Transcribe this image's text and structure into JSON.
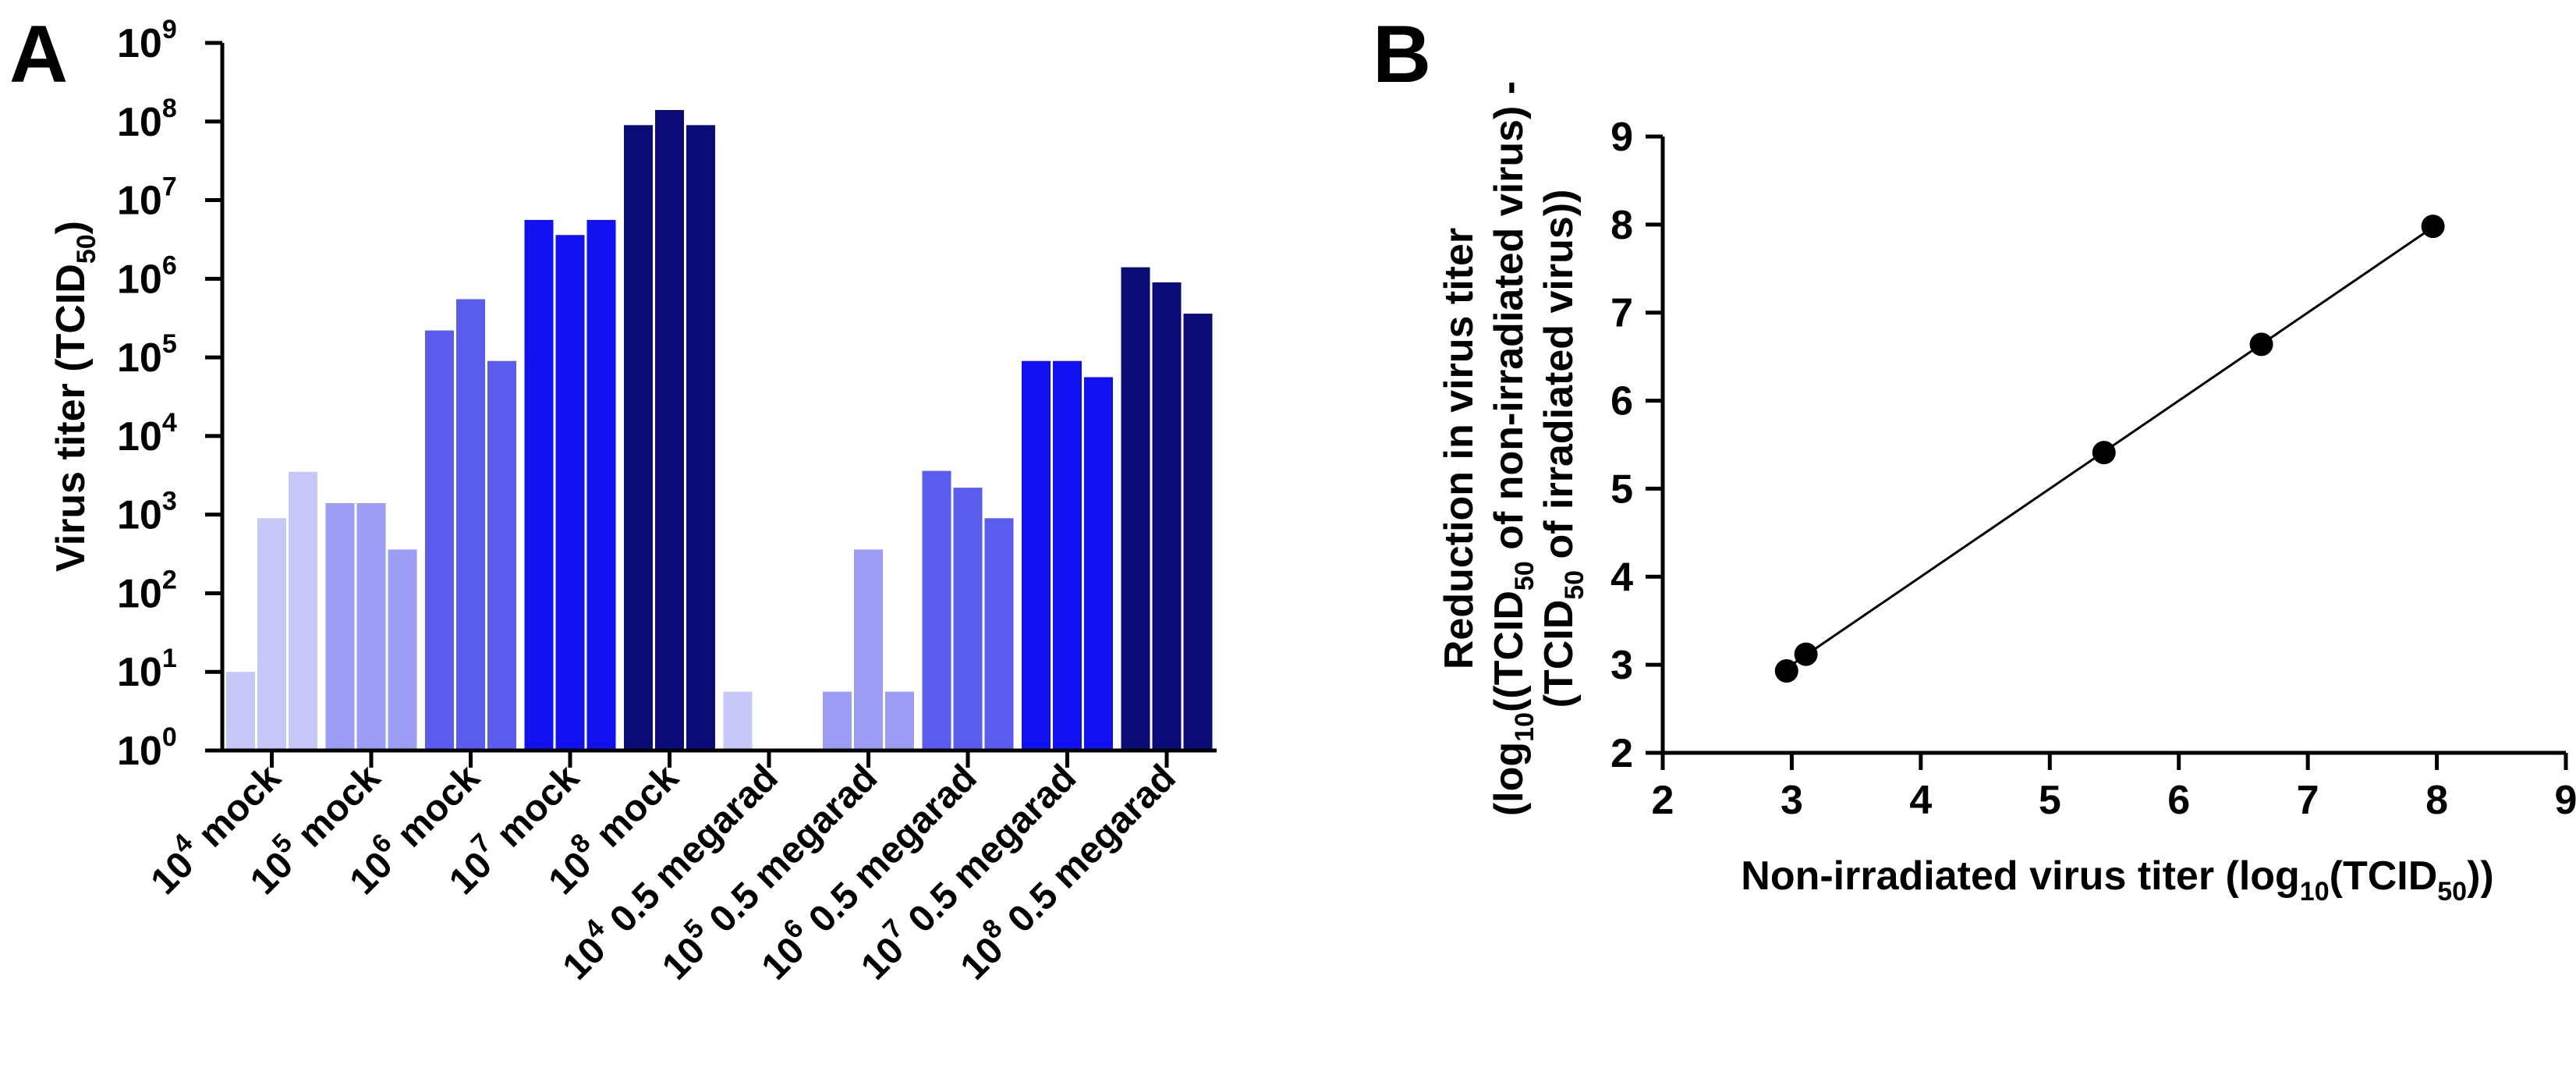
{
  "panels": {
    "a": {
      "letter": "A"
    },
    "b": {
      "letter": "B"
    }
  },
  "chart_data": [
    {
      "panel": "A",
      "type": "bar",
      "scale": "log10",
      "ylabel": {
        "main": "Virus  titer  (TCID",
        "sub": "50",
        "close": ")"
      },
      "ylim": [
        1,
        1000000000
      ],
      "yticks": [
        {
          "base": "10",
          "exp": "0",
          "value": 1
        },
        {
          "base": "10",
          "exp": "1",
          "value": 10
        },
        {
          "base": "10",
          "exp": "2",
          "value": 100
        },
        {
          "base": "10",
          "exp": "3",
          "value": 1000
        },
        {
          "base": "10",
          "exp": "4",
          "value": 10000
        },
        {
          "base": "10",
          "exp": "5",
          "value": 100000
        },
        {
          "base": "10",
          "exp": "6",
          "value": 1000000
        },
        {
          "base": "10",
          "exp": "7",
          "value": 10000000
        },
        {
          "base": "10",
          "exp": "8",
          "value": 100000000
        },
        {
          "base": "10",
          "exp": "9",
          "value": 1000000000
        }
      ],
      "groups": [
        {
          "label_base": "10",
          "label_exp": "4",
          "label_rest": " mock",
          "color": "#c6c8f8",
          "values": [
            10,
            900,
            3500
          ]
        },
        {
          "label_base": "10",
          "label_exp": "5",
          "label_rest": " mock",
          "color": "#9d9df5",
          "values": [
            1400,
            1400,
            360
          ]
        },
        {
          "label_base": "10",
          "label_exp": "6",
          "label_rest": " mock",
          "color": "#5a5cee",
          "values": [
            220000,
            550000,
            90000
          ]
        },
        {
          "label_base": "10",
          "label_exp": "7",
          "label_rest": " mock",
          "color": "#1010f0",
          "values": [
            5600000,
            3600000,
            5600000
          ]
        },
        {
          "label_base": "10",
          "label_exp": "8",
          "label_rest": " mock",
          "color": "#0a0a78",
          "values": [
            90000000,
            140000000,
            90000000
          ]
        },
        {
          "label_base": "10",
          "label_exp": "4",
          "label_rest": " 0.5 megarad",
          "color": "#c6c8f8",
          "values": [
            5.6,
            null,
            null
          ]
        },
        {
          "label_base": "10",
          "label_exp": "5",
          "label_rest": " 0.5 megarad",
          "color": "#9d9df5",
          "values": [
            5.6,
            360,
            5.6
          ]
        },
        {
          "label_base": "10",
          "label_exp": "6",
          "label_rest": " 0.5 megarad",
          "color": "#5a5cee",
          "values": [
            3600,
            2200,
            900
          ]
        },
        {
          "label_base": "10",
          "label_exp": "7",
          "label_rest": " 0.5 megarad",
          "color": "#1010f0",
          "values": [
            90000,
            90000,
            56000
          ]
        },
        {
          "label_base": "10",
          "label_exp": "8",
          "label_rest": " 0.5 megarad",
          "color": "#0a0a78",
          "values": [
            1400000,
            900000,
            360000
          ]
        }
      ]
    },
    {
      "panel": "B",
      "type": "scatter",
      "xlabel": {
        "pre": "Non-irradiated virus titer (log",
        "sub1": "10",
        "mid": "(TCID",
        "sub2": "50",
        "post": "))"
      },
      "ylabel": {
        "line1": "Reduction in virus titer",
        "line2": {
          "pre": "(log",
          "sub1": "10",
          "mid": "((TCID",
          "sub2": "50",
          "post": " of non-irradiated virus) -"
        },
        "line3": {
          "pre": "(TCID",
          "sub": "50",
          "post": " of irradiated virus))"
        }
      },
      "xlim": [
        2,
        9
      ],
      "ylim": [
        2,
        9
      ],
      "xticks": [
        "2",
        "3",
        "4",
        "5",
        "6",
        "7",
        "8",
        "9"
      ],
      "yticks": [
        "2",
        "3",
        "4",
        "5",
        "6",
        "7",
        "8",
        "9"
      ],
      "points": [
        {
          "x": 2.96,
          "y": 2.93
        },
        {
          "x": 3.11,
          "y": 3.12
        },
        {
          "x": 5.42,
          "y": 5.41
        },
        {
          "x": 6.64,
          "y": 6.64
        },
        {
          "x": 7.97,
          "y": 7.98
        }
      ],
      "fit_line": {
        "x": [
          2.96,
          7.97
        ],
        "y": [
          2.96,
          7.97
        ]
      }
    }
  ]
}
